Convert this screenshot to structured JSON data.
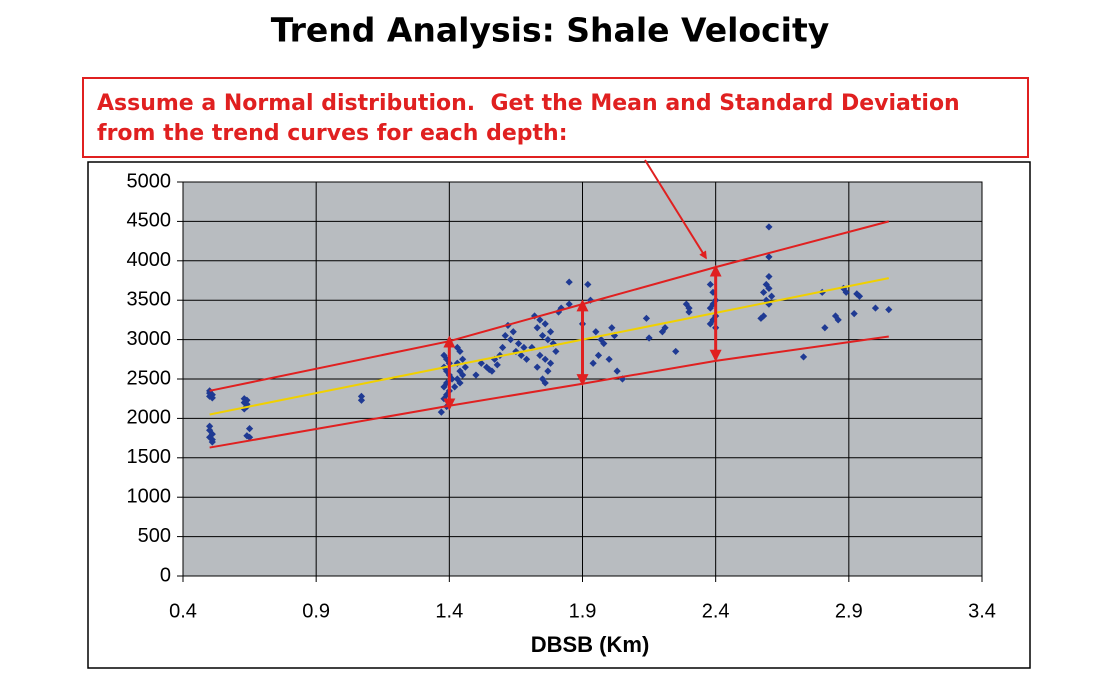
{
  "chart_data": {
    "type": "scatter",
    "title": "Trend Analysis: Shale Velocity",
    "annotation": [
      "Assume a Normal distribution.  Get the Mean and Standard Deviation",
      "from the trend curves for each depth:"
    ],
    "x_label": "DBSB (Km)",
    "xlim": [
      0.4,
      3.4
    ],
    "xticks": [
      0.4,
      0.9,
      1.4,
      1.9,
      2.4,
      2.9,
      3.4
    ],
    "ylim": [
      0,
      5000
    ],
    "yticks": [
      0,
      500,
      1000,
      1500,
      2000,
      2500,
      3000,
      3500,
      4000,
      4500,
      5000
    ],
    "grid": true,
    "plot_color": "#b8bcc0",
    "series": [
      {
        "type": "scatter",
        "color": "#1f3a93",
        "x": [
          0.5,
          0.5,
          0.51,
          0.5,
          0.51,
          0.5,
          0.5,
          0.51,
          0.5,
          0.51,
          0.51,
          0.63,
          0.64,
          0.63,
          0.64,
          0.64,
          0.63,
          0.65,
          0.64,
          0.65,
          1.07,
          1.07,
          1.38,
          1.39,
          1.4,
          1.38,
          1.39,
          1.4,
          1.41,
          1.39,
          1.38,
          1.4,
          1.39,
          1.38,
          1.4,
          1.39,
          1.37,
          1.43,
          1.44,
          1.45,
          1.43,
          1.46,
          1.44,
          1.45,
          1.43,
          1.44,
          1.42,
          1.52,
          1.54,
          1.56,
          1.5,
          1.55,
          1.58,
          1.57,
          1.59,
          1.6,
          1.62,
          1.64,
          1.63,
          1.66,
          1.68,
          1.65,
          1.67,
          1.69,
          1.61,
          1.72,
          1.74,
          1.76,
          1.73,
          1.78,
          1.75,
          1.77,
          1.79,
          1.71,
          1.8,
          1.74,
          1.76,
          1.78,
          1.73,
          1.77,
          1.75,
          1.76,
          1.82,
          1.81,
          1.85,
          1.85,
          1.92,
          1.93,
          1.9,
          1.95,
          1.97,
          1.98,
          1.96,
          1.94,
          2.01,
          2.02,
          2.0,
          2.03,
          2.05,
          2.14,
          2.15,
          2.2,
          2.21,
          2.25,
          2.29,
          2.3,
          2.3,
          2.38,
          2.39,
          2.4,
          2.39,
          2.38,
          2.4,
          2.39,
          2.38,
          2.4,
          2.6,
          2.6,
          2.6,
          2.59,
          2.6,
          2.58,
          2.61,
          2.59,
          2.6,
          2.58,
          2.57,
          2.73,
          2.8,
          2.81,
          2.85,
          2.86,
          2.88,
          2.89,
          2.93,
          2.94,
          2.92,
          3.0,
          3.05
        ],
        "values": [
          2350,
          2320,
          2300,
          2280,
          2260,
          1900,
          1850,
          1800,
          1760,
          1730,
          1700,
          2250,
          2230,
          2200,
          2180,
          2150,
          2120,
          1870,
          1780,
          1760,
          2280,
          2230,
          2800,
          2750,
          2700,
          2650,
          2600,
          2550,
          2500,
          2450,
          2400,
          2350,
          2300,
          2250,
          2200,
          2150,
          2080,
          2900,
          2850,
          2750,
          2700,
          2650,
          2600,
          2550,
          2500,
          2450,
          2400,
          2700,
          2650,
          2600,
          2550,
          2620,
          2680,
          2750,
          2800,
          2900,
          3180,
          3100,
          3000,
          2950,
          2900,
          2850,
          2800,
          2750,
          3050,
          3300,
          3250,
          3200,
          3150,
          3100,
          3050,
          3000,
          2950,
          2900,
          2850,
          2800,
          2750,
          2700,
          2650,
          2600,
          2500,
          2450,
          3400,
          3350,
          3730,
          3450,
          3700,
          3500,
          3200,
          3100,
          3000,
          2950,
          2800,
          2700,
          3150,
          3050,
          2750,
          2600,
          2500,
          3270,
          3020,
          3100,
          3150,
          2850,
          3450,
          3400,
          3350,
          3700,
          3600,
          3500,
          3450,
          3400,
          3300,
          3250,
          3200,
          3150,
          4430,
          4050,
          3800,
          3700,
          3650,
          3600,
          3550,
          3500,
          3450,
          3300,
          3270,
          2780,
          3600,
          3150,
          3300,
          3250,
          3650,
          3600,
          3580,
          3550,
          3330,
          3400,
          3380
        ]
      },
      {
        "type": "line",
        "color": "#e02020",
        "x": [
          0.5,
          1.4,
          1.9,
          2.4,
          3.05
        ],
        "values": [
          2350,
          2980,
          3450,
          3920,
          4500
        ]
      },
      {
        "type": "line",
        "color": "#f0d000",
        "x": [
          0.5,
          3.05
        ],
        "values": [
          2050,
          3780
        ]
      },
      {
        "type": "line",
        "color": "#e02020",
        "x": [
          0.5,
          1.4,
          1.9,
          2.4,
          3.05
        ],
        "values": [
          1630,
          2160,
          2440,
          2730,
          3040
        ]
      }
    ],
    "ranges": {
      "color": "#e02020",
      "x": [
        1.4,
        1.9,
        2.4
      ],
      "low": [
        2130,
        2440,
        2750
      ],
      "high": [
        3020,
        3480,
        3920
      ]
    }
  }
}
